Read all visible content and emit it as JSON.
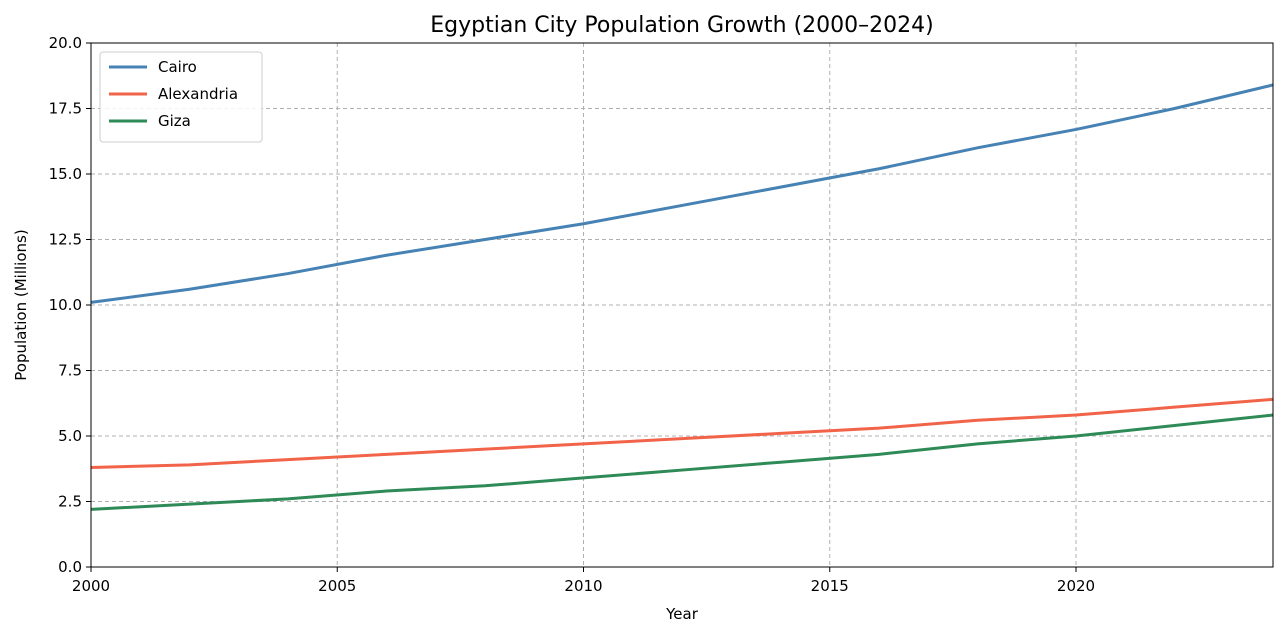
{
  "chart_data": {
    "type": "line",
    "title": "Egyptian City Population Growth (2000–2024)",
    "xlabel": "Year",
    "ylabel": "Population (Millions)",
    "xlim": [
      2000,
      2024
    ],
    "ylim": [
      0,
      20
    ],
    "x_ticks": [
      2000,
      2005,
      2010,
      2015,
      2020
    ],
    "x_tick_labels": [
      "2000",
      "2005",
      "2010",
      "2015",
      "2020"
    ],
    "y_ticks": [
      0,
      2.5,
      5,
      7.5,
      10,
      12.5,
      15,
      17.5,
      20
    ],
    "y_tick_labels": [
      "0.0",
      "2.5",
      "5.0",
      "7.5",
      "10.0",
      "12.5",
      "15.0",
      "17.5",
      "20.0"
    ],
    "grid": true,
    "legend_position": "top-left",
    "x": [
      2000,
      2002,
      2004,
      2006,
      2008,
      2010,
      2012,
      2014,
      2016,
      2018,
      2020,
      2022,
      2024
    ],
    "series": [
      {
        "name": "Cairo",
        "color": "#4682b4",
        "values": [
          10.1,
          10.6,
          11.2,
          11.9,
          12.5,
          13.1,
          13.8,
          14.5,
          15.2,
          16.0,
          16.7,
          17.5,
          18.4
        ]
      },
      {
        "name": "Alexandria",
        "color": "#f26449",
        "values": [
          3.8,
          3.9,
          4.1,
          4.3,
          4.5,
          4.7,
          4.9,
          5.1,
          5.3,
          5.6,
          5.8,
          6.1,
          6.4
        ]
      },
      {
        "name": "Giza",
        "color": "#2e8b57",
        "values": [
          2.2,
          2.4,
          2.6,
          2.9,
          3.1,
          3.4,
          3.7,
          4.0,
          4.3,
          4.7,
          5.0,
          5.4,
          5.8
        ]
      }
    ]
  }
}
